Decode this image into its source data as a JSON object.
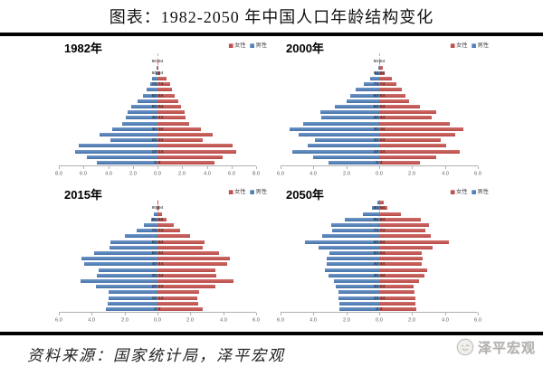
{
  "title": "图表：1982-2050 年中国人口年龄结构变化",
  "legend": {
    "female": "女性",
    "male": "男性"
  },
  "colors": {
    "female": "#C0504D",
    "male": "#4F81BD",
    "axis": "#B0B0B0"
  },
  "footer": {
    "source": "资料来源：国家统计局，泽平宏观",
    "brand": "泽平宏观"
  },
  "age_groups": [
    "0-4",
    "5-9",
    "10-14",
    "15-19",
    "20-24",
    "25-29",
    "30-34",
    "35-39",
    "40-44",
    "45-49",
    "50-54",
    "55-59",
    "60-64",
    "65-69",
    "70-74",
    "75-79",
    "80-84",
    "85-89",
    "90-94",
    "95+"
  ],
  "chart_data": [
    {
      "type": "bar",
      "subtype": "population-pyramid",
      "year": "1982年",
      "xlabel": "",
      "ylabel": "",
      "xlim": [
        -8,
        8
      ],
      "xmax": 8,
      "ticks": [
        "8.0",
        "6.0",
        "4.0",
        "2.0",
        "0.0",
        "2.0",
        "4.0",
        "6.0",
        "8.0"
      ],
      "series_male": [
        4.9,
        5.7,
        6.7,
        6.4,
        3.8,
        4.7,
        3.7,
        2.9,
        2.6,
        2.4,
        2.15,
        1.6,
        1.2,
        0.9,
        0.6,
        0.45,
        0.15,
        0.05,
        0.02,
        0.0
      ],
      "series_female": [
        4.6,
        5.3,
        6.4,
        6.1,
        3.65,
        4.5,
        3.5,
        2.6,
        2.3,
        2.2,
        1.9,
        1.7,
        1.4,
        1.2,
        1.0,
        0.75,
        0.25,
        0.1,
        0.05,
        0.02
      ]
    },
    {
      "type": "bar",
      "subtype": "population-pyramid",
      "year": "2000年",
      "xlabel": "",
      "ylabel": "",
      "xlim": [
        -6,
        6
      ],
      "xmax": 6,
      "ticks": [
        "6.0",
        "4.0",
        "2.0",
        "0.0",
        "2.0",
        "4.0",
        "6.0"
      ],
      "series_male": [
        3.1,
        4.0,
        5.3,
        4.35,
        3.9,
        4.9,
        5.45,
        4.6,
        3.5,
        3.6,
        2.7,
        2.0,
        1.75,
        1.45,
        0.95,
        0.55,
        0.25,
        0.05,
        0.02,
        0.0
      ],
      "series_female": [
        2.5,
        3.45,
        4.9,
        4.1,
        3.75,
        4.65,
        5.1,
        4.3,
        3.2,
        3.45,
        2.5,
        1.8,
        1.6,
        1.4,
        1.05,
        0.75,
        0.35,
        0.2,
        0.05,
        0.02
      ]
    },
    {
      "type": "bar",
      "subtype": "population-pyramid",
      "year": "2015年",
      "xlabel": "",
      "ylabel": "",
      "xlim": [
        -6,
        6
      ],
      "xmax": 6,
      "ticks": [
        "6.0",
        "4.0",
        "2.0",
        "0.0",
        "2.0",
        "4.0",
        "6.0"
      ],
      "series_male": [
        3.15,
        3.05,
        2.95,
        2.95,
        3.75,
        4.7,
        3.7,
        3.6,
        4.45,
        4.6,
        3.85,
        2.9,
        2.85,
        2.0,
        1.25,
        0.8,
        0.4,
        0.2,
        0.05,
        0.02
      ],
      "series_female": [
        2.75,
        2.45,
        2.4,
        2.55,
        3.5,
        4.65,
        3.6,
        3.5,
        4.25,
        4.4,
        3.75,
        2.75,
        2.85,
        2.0,
        1.35,
        1.0,
        0.55,
        0.3,
        0.13,
        0.05
      ]
    },
    {
      "type": "bar",
      "subtype": "population-pyramid",
      "year": "2050年",
      "xlabel": "",
      "ylabel": "",
      "xlim": [
        -6,
        6
      ],
      "xmax": 6,
      "ticks": [
        "6.0",
        "4.0",
        "2.0",
        "0.0",
        "2.0",
        "4.0",
        "6.0"
      ],
      "series_male": [
        2.4,
        2.45,
        2.5,
        2.5,
        2.65,
        2.75,
        3.1,
        3.3,
        3.2,
        3.2,
        3.05,
        3.7,
        4.5,
        3.45,
        2.85,
        2.9,
        2.1,
        1.0,
        0.45,
        0.1
      ],
      "series_female": [
        2.25,
        2.2,
        2.2,
        2.15,
        2.1,
        2.4,
        2.75,
        2.9,
        2.6,
        2.65,
        2.6,
        3.25,
        4.25,
        3.15,
        2.8,
        3.0,
        2.55,
        1.3,
        0.5,
        0.3
      ]
    }
  ]
}
